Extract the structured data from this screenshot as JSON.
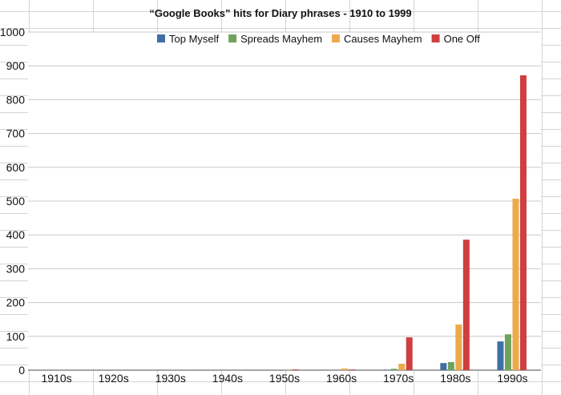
{
  "chart_data": {
    "type": "bar",
    "title": "“Google Books” hits for Diary phrases - 1910 to 1999",
    "categories": [
      "1910s",
      "1920s",
      "1930s",
      "1940s",
      "1950s",
      "1960s",
      "1970s",
      "1980s",
      "1990s"
    ],
    "series": [
      {
        "name": "Top Myself",
        "color": "#3f6fa3",
        "values": [
          0,
          0,
          0,
          0,
          0,
          0,
          1,
          21,
          85
        ]
      },
      {
        "name": "Spreads Mayhem",
        "color": "#6fa35c",
        "values": [
          0,
          0,
          0,
          0,
          0,
          0,
          4,
          24,
          106
        ]
      },
      {
        "name": "Causes Mayhem",
        "color": "#eeaa4a",
        "values": [
          0,
          0,
          0,
          0,
          1,
          5,
          19,
          135,
          507
        ]
      },
      {
        "name": "One Off",
        "color": "#cf3f3f",
        "values": [
          0,
          0,
          0,
          0,
          2,
          2,
          97,
          386,
          872
        ]
      }
    ],
    "yticks": [
      0,
      100,
      200,
      300,
      400,
      500,
      600,
      700,
      800,
      900,
      1000
    ],
    "ylim": [
      0,
      1000
    ],
    "legend": "top",
    "grid": true
  }
}
